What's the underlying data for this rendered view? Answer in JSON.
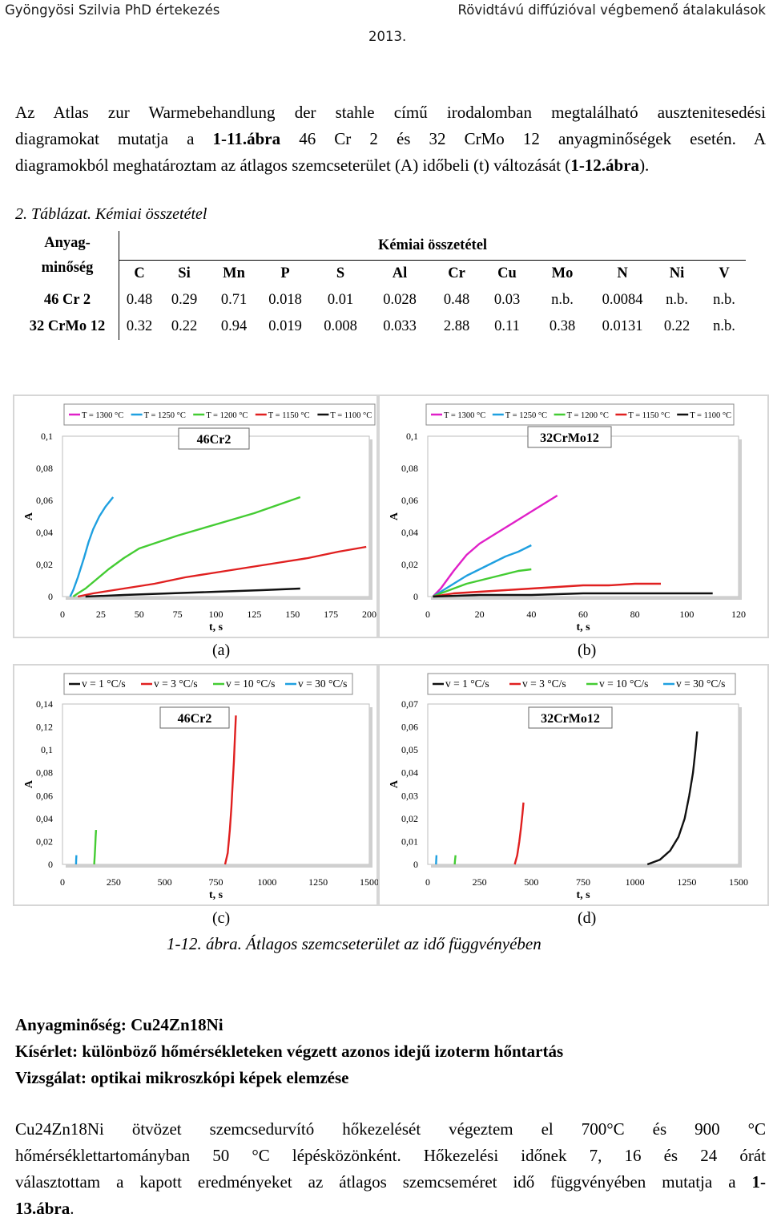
{
  "header": {
    "left": "Gyöngyösi Szilvia PhD értekezés",
    "right": "Rövidtávú diffúzióval végbemenő átalakulások",
    "year": "2013."
  },
  "intro": {
    "line1": "Az Atlas zur Warmebehandlung der stahle című irodalomban megtalálható ausztenitesedési",
    "line2a": "diagramokat mutatja a ",
    "line2b": "1-11.ábra",
    "line2c": " 46 Cr 2 és 32 CrMo 12 anyagminőségek esetén. A",
    "line3a": "diagramokból meghatároztam az átlagos szemcseterület (A) időbeli (t) változását (",
    "line3b": "1-12.ábra",
    "line3c": ")."
  },
  "table": {
    "caption_num": "2. Táblázat.",
    "caption_text": " Kémiai összetétel",
    "corner_line1": "Anyag-",
    "corner_line2": "minőség",
    "group_header": "Kémiai összetétel",
    "elements": [
      "C",
      "Si",
      "Mn",
      "P",
      "S",
      "Al",
      "Cr",
      "Cu",
      "Mo",
      "N",
      "Ni",
      "V"
    ],
    "rows": [
      {
        "name": "46 Cr 2",
        "values": [
          "0.48",
          "0.29",
          "0.71",
          "0.018",
          "0.01",
          "0.028",
          "0.48",
          "0.03",
          "n.b.",
          "0.0084",
          "n.b.",
          "n.b."
        ]
      },
      {
        "name": "32 CrMo 12",
        "values": [
          "0.32",
          "0.22",
          "0.94",
          "0.019",
          "0.008",
          "0.033",
          "2.88",
          "0.11",
          "0.38",
          "0.0131",
          "0.22",
          "n.b."
        ]
      }
    ]
  },
  "chart_data": [
    {
      "type": "line",
      "panel": "(a)",
      "title": "46Cr2",
      "xlabel": "t, s",
      "ylabel": "A",
      "xlim": [
        0,
        200
      ],
      "ylim": [
        0,
        0.1
      ],
      "xticks": [
        "0",
        "25",
        "50",
        "75",
        "100",
        "125",
        "150",
        "175",
        "200"
      ],
      "yticks": [
        "0",
        "0,02",
        "0,04",
        "0,06",
        "0,08",
        "0,1"
      ],
      "series": [
        {
          "name": "T = 1300 °C",
          "color": "#e020c8",
          "x": [
            0
          ],
          "y": [
            0
          ]
        },
        {
          "name": "T = 1250 °C",
          "color": "#1fa0e0",
          "x": [
            5,
            7,
            10,
            14,
            17,
            20,
            24,
            28,
            33
          ],
          "y": [
            0,
            0.004,
            0.012,
            0.024,
            0.034,
            0.042,
            0.05,
            0.056,
            0.062
          ]
        },
        {
          "name": "T = 1200 °C",
          "color": "#44cc33",
          "x": [
            7,
            10,
            15,
            20,
            30,
            40,
            50,
            75,
            100,
            125,
            155
          ],
          "y": [
            0,
            0.002,
            0.005,
            0.009,
            0.017,
            0.024,
            0.03,
            0.038,
            0.045,
            0.052,
            0.062
          ]
        },
        {
          "name": "T = 1150 °C",
          "color": "#e02020",
          "x": [
            10,
            20,
            40,
            60,
            80,
            100,
            120,
            140,
            160,
            180,
            198
          ],
          "y": [
            0,
            0.002,
            0.005,
            0.008,
            0.012,
            0.015,
            0.018,
            0.021,
            0.024,
            0.028,
            0.031
          ]
        },
        {
          "name": "T = 1100 °C",
          "color": "#111111",
          "x": [
            15,
            40,
            70,
            100,
            130,
            155
          ],
          "y": [
            0,
            0.001,
            0.002,
            0.003,
            0.004,
            0.005
          ]
        }
      ]
    },
    {
      "type": "line",
      "panel": "(b)",
      "title": "32CrMo12",
      "xlabel": "t, s",
      "ylabel": "A",
      "xlim": [
        0,
        120
      ],
      "ylim": [
        0,
        0.1
      ],
      "xticks": [
        "0",
        "20",
        "40",
        "60",
        "80",
        "100",
        "120"
      ],
      "yticks": [
        "0",
        "0,02",
        "0,04",
        "0,06",
        "0,08",
        "0,1"
      ],
      "series": [
        {
          "name": "T = 1300 °C",
          "color": "#e020c8",
          "x": [
            2,
            5,
            10,
            15,
            20,
            25,
            30,
            35,
            40,
            45,
            50
          ],
          "y": [
            0,
            0.005,
            0.016,
            0.026,
            0.033,
            0.038,
            0.043,
            0.048,
            0.053,
            0.058,
            0.063
          ]
        },
        {
          "name": "T = 1250 °C",
          "color": "#1fa0e0",
          "x": [
            2,
            5,
            10,
            15,
            20,
            25,
            30,
            35,
            40
          ],
          "y": [
            0,
            0.003,
            0.008,
            0.013,
            0.017,
            0.021,
            0.025,
            0.028,
            0.032
          ]
        },
        {
          "name": "T = 1200 °C",
          "color": "#44cc33",
          "x": [
            2,
            5,
            10,
            15,
            20,
            25,
            30,
            35,
            40
          ],
          "y": [
            0,
            0.002,
            0.005,
            0.008,
            0.01,
            0.012,
            0.014,
            0.016,
            0.017
          ]
        },
        {
          "name": "T = 1150 °C",
          "color": "#e02020",
          "x": [
            2,
            10,
            20,
            30,
            40,
            50,
            60,
            70,
            80,
            90
          ],
          "y": [
            0,
            0.002,
            0.003,
            0.004,
            0.005,
            0.006,
            0.007,
            0.007,
            0.008,
            0.008
          ]
        },
        {
          "name": "T = 1100 °C",
          "color": "#111111",
          "x": [
            2,
            20,
            40,
            60,
            80,
            100,
            110
          ],
          "y": [
            0,
            0.001,
            0.001,
            0.002,
            0.002,
            0.002,
            0.002
          ]
        }
      ]
    },
    {
      "type": "line",
      "panel": "(c)",
      "title": "46Cr2",
      "xlabel": "t, s",
      "ylabel": "A",
      "xlim": [
        0,
        1500
      ],
      "ylim": [
        0,
        0.14
      ],
      "xticks": [
        "0",
        "250",
        "500",
        "750",
        "1000",
        "1250",
        "1500"
      ],
      "yticks": [
        "0",
        "0,02",
        "0,04",
        "0,06",
        "0,08",
        "0,1",
        "0,12",
        "0,14"
      ],
      "series": [
        {
          "name": "v = 1 °C/s",
          "color": "#111111",
          "x": [
            0
          ],
          "y": [
            0
          ]
        },
        {
          "name": "v = 3 °C/s",
          "color": "#e02020",
          "x": [
            795,
            808,
            818,
            826,
            832,
            838,
            843,
            848
          ],
          "y": [
            0,
            0.01,
            0.03,
            0.05,
            0.07,
            0.09,
            0.11,
            0.13
          ]
        },
        {
          "name": "v = 10 °C/s",
          "color": "#44cc33",
          "x": [
            155,
            158,
            160,
            162,
            164
          ],
          "y": [
            0,
            0.008,
            0.016,
            0.024,
            0.03
          ]
        },
        {
          "name": "v = 30 °C/s",
          "color": "#1fa0e0",
          "x": [
            66,
            67,
            68
          ],
          "y": [
            0,
            0.004,
            0.008
          ]
        }
      ]
    },
    {
      "type": "line",
      "panel": "(d)",
      "title": "32CrMo12",
      "xlabel": "t, s",
      "ylabel": "A",
      "xlim": [
        0,
        1500
      ],
      "ylim": [
        0,
        0.07
      ],
      "xticks": [
        "0",
        "250",
        "500",
        "750",
        "1000",
        "1250",
        "1500"
      ],
      "yticks": [
        "0",
        "0,01",
        "0,02",
        "0,03",
        "0,04",
        "0,05",
        "0,06",
        "0,07"
      ],
      "series": [
        {
          "name": "v = 1 °C/s",
          "color": "#111111",
          "x": [
            1060,
            1120,
            1170,
            1210,
            1240,
            1262,
            1280,
            1292,
            1300
          ],
          "y": [
            0,
            0.002,
            0.006,
            0.012,
            0.02,
            0.03,
            0.04,
            0.05,
            0.058
          ]
        },
        {
          "name": "v = 3 °C/s",
          "color": "#e02020",
          "x": [
            420,
            432,
            442,
            450,
            457,
            462
          ],
          "y": [
            0,
            0.004,
            0.01,
            0.016,
            0.022,
            0.027
          ]
        },
        {
          "name": "v = 10 °C/s",
          "color": "#44cc33",
          "x": [
            130,
            132,
            134
          ],
          "y": [
            0,
            0.002,
            0.004
          ]
        },
        {
          "name": "v = 30 °C/s",
          "color": "#1fa0e0",
          "x": [
            40,
            41,
            42
          ],
          "y": [
            0,
            0.002,
            0.004
          ]
        }
      ]
    }
  ],
  "figure": {
    "label_a": "(a)",
    "label_b": "(b)",
    "label_c": "(c)",
    "label_d": "(d)",
    "caption_num": "1-12. ábra. ",
    "caption_text": "Átlagos szemcseterület az idő függvényében"
  },
  "experiment": {
    "material": "Anyagminőség: Cu24Zn18Ni",
    "test": "Kísérlet: különböző hőmérsékleteken végzett azonos idejű izoterm hőntartás",
    "exam": "Vizsgálat: optikai mikroszkópi képek elemzése"
  },
  "closing": {
    "line1": "Cu24Zn18Ni ötvözet szemcsedurvító hőkezelését végeztem el 700°C és 900 °C",
    "line2": "hőmérséklettartományban 50 °C lépésközönként. Hőkezelési időnek 7, 16 és 24 órát",
    "line3a": "választottam a kapott eredményeket az átlagos szemcseméret idő függvényében mutatja a ",
    "line3b": "1-",
    "line4a": "13.ábra",
    "line4b": "."
  }
}
